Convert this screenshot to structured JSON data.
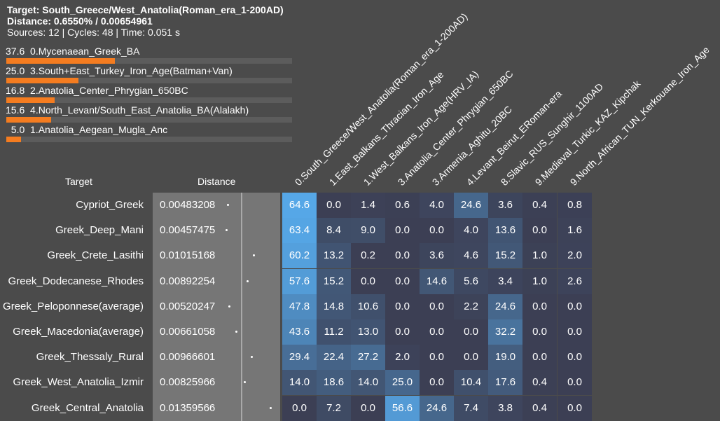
{
  "header": {
    "target_line": "Target: South_Greece/West_Anatolia(Roman_era_1-200AD)",
    "distance_line": "Distance: 0.6550% / 0.00654961",
    "info_line": "Sources: 12 | Cycles: 48 | Time: 0.051 s"
  },
  "sources": [
    {
      "text": "37.6  0.Mycenaean_Greek_BA",
      "value": 37.6
    },
    {
      "text": "25.0  3.South+East_Turkey_Iron_Age(Batman+Van)",
      "value": 25.0
    },
    {
      "text": "16.8  2.Anatolia_Center_Phrygian_650BC",
      "value": 16.8
    },
    {
      "text": "15.6  4.North_Levant/South_East_Anatolia_BA(Alalakh)",
      "value": 15.6
    },
    {
      "text": "  5.0  1.Anatolia_Aegean_Mugla_Anc",
      "value": 5.0
    }
  ],
  "table": {
    "target_header": "Target",
    "distance_header": "Distance",
    "columns": [
      "0.South_Greece/West_Anatolia(Roman_era_1-200AD)",
      "1.East_Balkans_Thracian_Iron_Age",
      "1.West_Balkans_Iron_Age(HRV_IA)",
      "3.Anatolia_Center_Phrygian_650BC",
      "3.Armenia_Aghitu_20BC",
      "4.Levant_Beirut_ERoman-era",
      "8.Slavic_RUS_Sunghir_1100AD",
      "9.Medieval_Turkic_KAZ_Kipchak",
      "9.North_African_TUN_Kerkouane_Iron_Age"
    ],
    "rows": [
      {
        "name": "Cypriot_Greek",
        "distance": "0.00483208",
        "values": [
          "64.6",
          "0.0",
          "1.4",
          "0.6",
          "4.0",
          "24.6",
          "3.6",
          "0.4",
          "0.8"
        ]
      },
      {
        "name": "Greek_Deep_Mani",
        "distance": "0.00457475",
        "values": [
          "63.4",
          "8.4",
          "9.0",
          "0.0",
          "0.0",
          "4.0",
          "13.6",
          "0.0",
          "1.6"
        ]
      },
      {
        "name": "Greek_Crete_Lasithi",
        "distance": "0.01015168",
        "values": [
          "60.2",
          "13.2",
          "0.2",
          "0.0",
          "3.6",
          "4.6",
          "15.2",
          "1.0",
          "2.0"
        ]
      },
      {
        "name": "Greek_Dodecanese_Rhodes",
        "distance": "0.00892254",
        "values": [
          "57.6",
          "15.2",
          "0.0",
          "0.0",
          "14.6",
          "5.6",
          "3.4",
          "1.0",
          "2.6"
        ]
      },
      {
        "name": "Greek_Peloponnese(average)",
        "distance": "0.00520247",
        "values": [
          "47.8",
          "14.8",
          "10.6",
          "0.0",
          "0.0",
          "2.2",
          "24.6",
          "0.0",
          "0.0"
        ]
      },
      {
        "name": "Greek_Macedonia(average)",
        "distance": "0.00661058",
        "values": [
          "43.6",
          "11.2",
          "13.0",
          "0.0",
          "0.0",
          "0.0",
          "32.2",
          "0.0",
          "0.0"
        ]
      },
      {
        "name": "Greek_Thessaly_Rural",
        "distance": "0.00966601",
        "values": [
          "29.4",
          "22.4",
          "27.2",
          "2.0",
          "0.0",
          "0.0",
          "19.0",
          "0.0",
          "0.0"
        ]
      },
      {
        "name": "Greek_West_Anatolia_Izmir",
        "distance": "0.00825966",
        "values": [
          "14.0",
          "18.6",
          "14.0",
          "25.0",
          "0.0",
          "10.4",
          "17.6",
          "0.4",
          "0.0"
        ]
      },
      {
        "name": "Greek_Central_Anatolia",
        "distance": "0.01359566",
        "values": [
          "0.0",
          "7.2",
          "0.0",
          "56.6",
          "24.6",
          "7.4",
          "3.8",
          "0.4",
          "0.0"
        ]
      }
    ]
  },
  "colors": {
    "background": "#4b4b4b",
    "bar_fill": "#f47c20",
    "heat_low": "#3c3f54",
    "heat_high": "#56a8e8"
  }
}
